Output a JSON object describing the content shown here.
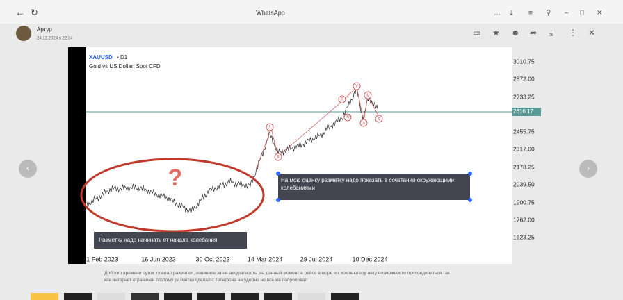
{
  "browser": {
    "title": "WhatsApp"
  },
  "header": {
    "sender": "Артур",
    "timestamp": "24.12.2024 в 22:34"
  },
  "image": {
    "symbol": "XAUUSD",
    "interval": "• D1",
    "subtitle": "Gold vs US Dollar, Spot CFD",
    "price_labels": [
      "3010.75",
      "2872.00",
      "2733.25",
      "2455.75",
      "2317.00",
      "2178.25",
      "2039.50",
      "1900.75",
      "1762.00",
      "1623.25"
    ],
    "current_price": "2616.17",
    "date_labels": [
      "1 Feb 2023",
      "16 Jun 2023",
      "30 Oct 2023",
      "14 Mar 2024",
      "29 Jul 2024",
      "10 Dec 2024"
    ],
    "wave_labels": [
      "I",
      "II",
      "III",
      "IV",
      "V",
      "a",
      "b",
      "c"
    ],
    "question_mark": "?",
    "notes": [
      "Разметку надо начинать от начала колебания",
      "На мою оценку разметку надо показать в сочетании окружающими колебаниями"
    ]
  },
  "caption": "Доброго времени суток ,сделал разметки , извините за не аккуратность ,на данный момент в рейсе в море и к компьютеру нету возможности присоединиться так как интернет ограничен поэтому разметки сделал с телефона не удобно но все же попробовал"
}
